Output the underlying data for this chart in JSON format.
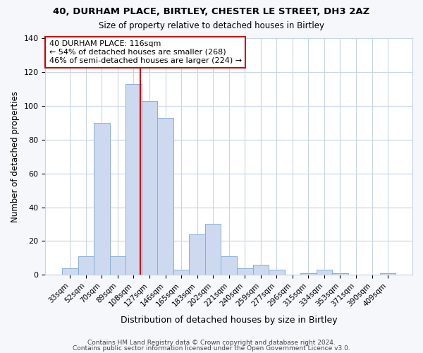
{
  "title1": "40, DURHAM PLACE, BIRTLEY, CHESTER LE STREET, DH3 2AZ",
  "title2": "Size of property relative to detached houses in Birtley",
  "xlabel": "Distribution of detached houses by size in Birtley",
  "ylabel": "Number of detached properties",
  "categories": [
    "33sqm",
    "52sqm",
    "70sqm",
    "89sqm",
    "108sqm",
    "127sqm",
    "146sqm",
    "165sqm",
    "183sqm",
    "202sqm",
    "221sqm",
    "240sqm",
    "259sqm",
    "277sqm",
    "296sqm",
    "315sqm",
    "334sqm",
    "353sqm",
    "371sqm",
    "390sqm",
    "409sqm"
  ],
  "values": [
    4,
    11,
    90,
    11,
    113,
    103,
    93,
    3,
    24,
    30,
    11,
    4,
    6,
    3,
    0,
    1,
    3,
    1,
    0,
    0,
    1
  ],
  "bar_color": "#ccd9ee",
  "bar_edge_color": "#8aafd4",
  "vline_x_index": 4.42,
  "vline_color": "#cc0000",
  "annotation_text": "40 DURHAM PLACE: 116sqm\n← 54% of detached houses are smaller (268)\n46% of semi-detached houses are larger (224) →",
  "annotation_box_color": "#ffffff",
  "annotation_box_edge_color": "#cc0000",
  "footer1": "Contains HM Land Registry data © Crown copyright and database right 2024.",
  "footer2": "Contains public sector information licensed under the Open Government Licence v3.0.",
  "ylim": [
    0,
    140
  ],
  "yticks": [
    0,
    20,
    40,
    60,
    80,
    100,
    120,
    140
  ],
  "background_color": "#f5f7fb",
  "plot_background_color": "#ffffff",
  "grid_color": "#c8d4e8"
}
